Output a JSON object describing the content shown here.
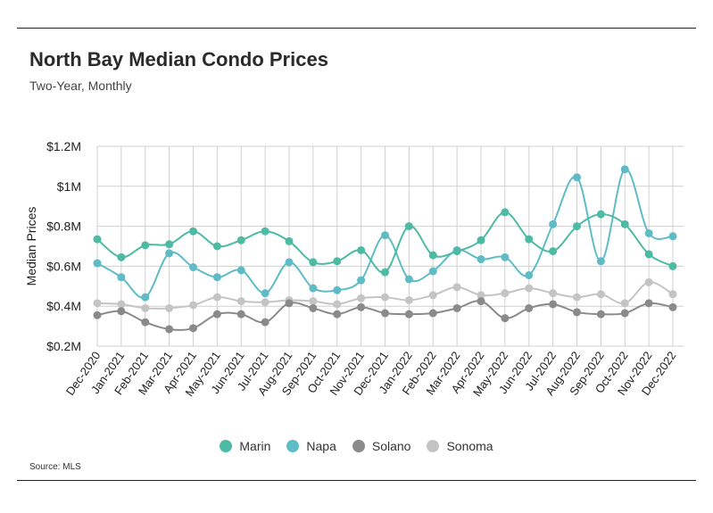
{
  "header": {
    "title": "North Bay Median Condo Prices",
    "subtitle": "Two-Year, Monthly"
  },
  "footer": {
    "source": "Source: MLS"
  },
  "chart_data": {
    "type": "line",
    "title": "North Bay Median Condo Prices",
    "subtitle": "Two-Year, Monthly",
    "xlabel": "",
    "ylabel": "Median Prices",
    "ylim": [
      0.2,
      1.2
    ],
    "yticks": [
      {
        "value": 0.2,
        "label": "$0.2M"
      },
      {
        "value": 0.4,
        "label": "$0.4M"
      },
      {
        "value": 0.6,
        "label": "$0.6M"
      },
      {
        "value": 0.8,
        "label": "$0.8M"
      },
      {
        "value": 1.0,
        "label": "$1M"
      },
      {
        "value": 1.2,
        "label": "$1.2M"
      }
    ],
    "grid": "vertical and horizontal",
    "legend_position": "bottom-center",
    "categories": [
      "Dec-2020",
      "Jan-2021",
      "Feb-2021",
      "Mar-2021",
      "Apr-2021",
      "May-2021",
      "Jun-2021",
      "Jul-2021",
      "Aug-2021",
      "Sep-2021",
      "Oct-2021",
      "Nov-2021",
      "Dec-2021",
      "Jan-2022",
      "Feb-2022",
      "Mar-2022",
      "Apr-2022",
      "May-2022",
      "Jun-2022",
      "Jul-2022",
      "Aug-2022",
      "Sep-2022",
      "Oct-2022",
      "Nov-2022",
      "Dec-2022"
    ],
    "series": [
      {
        "name": "Marin",
        "color": "#4dbaa3",
        "values": [
          0.735,
          0.645,
          0.705,
          0.71,
          0.775,
          0.7,
          0.73,
          0.775,
          0.725,
          0.62,
          0.625,
          0.68,
          0.57,
          0.8,
          0.655,
          0.675,
          0.73,
          0.87,
          0.735,
          0.675,
          0.8,
          0.86,
          0.81,
          0.66,
          0.6
        ]
      },
      {
        "name": "Napa",
        "color": "#5fbcc6",
        "values": [
          0.615,
          0.545,
          0.445,
          0.665,
          0.595,
          0.545,
          0.58,
          0.465,
          0.62,
          0.49,
          0.48,
          0.53,
          0.755,
          0.535,
          0.575,
          0.68,
          0.635,
          0.645,
          0.555,
          0.81,
          1.045,
          0.625,
          1.085,
          0.765,
          0.75
        ]
      },
      {
        "name": "Solano",
        "color": "#8a8a8a",
        "values": [
          0.355,
          0.375,
          0.32,
          0.285,
          0.29,
          0.36,
          0.36,
          0.32,
          0.415,
          0.39,
          0.36,
          0.395,
          0.365,
          0.36,
          0.365,
          0.39,
          0.425,
          0.34,
          0.39,
          0.41,
          0.37,
          0.36,
          0.365,
          0.415,
          0.395
        ]
      },
      {
        "name": "Sonoma",
        "color": "#c4c4c4",
        "values": [
          0.415,
          0.41,
          0.39,
          0.39,
          0.405,
          0.445,
          0.425,
          0.42,
          0.43,
          0.425,
          0.41,
          0.44,
          0.445,
          0.43,
          0.455,
          0.495,
          0.455,
          0.465,
          0.49,
          0.465,
          0.445,
          0.46,
          0.415,
          0.52,
          0.46
        ]
      }
    ]
  }
}
